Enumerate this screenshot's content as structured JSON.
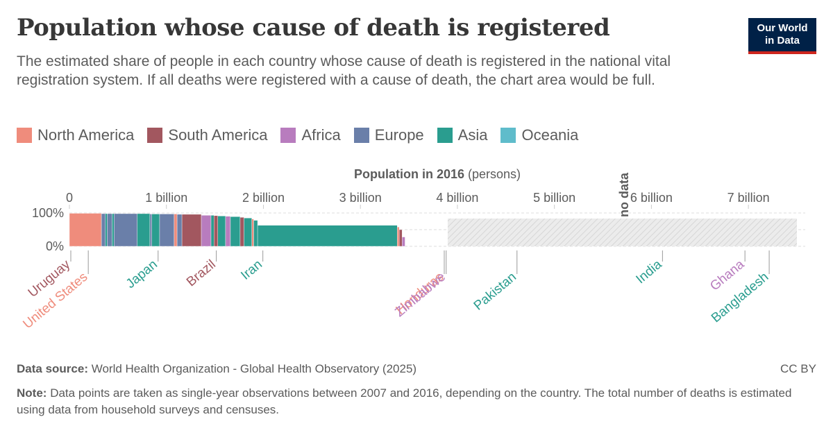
{
  "header": {
    "title": "Population whose cause of death is registered",
    "subtitle": "The estimated share of people in each country whose cause of death is registered in the national vital registration system. If all deaths were registered with a cause of death, the chart area would be full.",
    "logo_line1": "Our World",
    "logo_line2": "in Data"
  },
  "legend": [
    {
      "label": "North America",
      "color": "#ef8c7c"
    },
    {
      "label": "South America",
      "color": "#a2575f"
    },
    {
      "label": "Africa",
      "color": "#b87cbe"
    },
    {
      "label": "Europe",
      "color": "#6a7fa9"
    },
    {
      "label": "Asia",
      "color": "#2a9d8f"
    },
    {
      "label": "Oceania",
      "color": "#5fbccb"
    }
  ],
  "chart_data": {
    "type": "variable-width bar (marimekko)",
    "x_axis_title_bold": "Population in 2016",
    "x_axis_title_unit": "(persons)",
    "x_ticks": [
      {
        "value": 0,
        "label": "0"
      },
      {
        "value": 1,
        "label": "1 billion"
      },
      {
        "value": 2,
        "label": "2 billion"
      },
      {
        "value": 3,
        "label": "3 billion"
      },
      {
        "value": 4,
        "label": "4 billion"
      },
      {
        "value": 5,
        "label": "5 billion"
      },
      {
        "value": 6,
        "label": "6 billion"
      },
      {
        "value": 7,
        "label": "7 billion"
      }
    ],
    "y_ticks": [
      {
        "value": 100,
        "label": "100%"
      },
      {
        "value": 0,
        "label": "0%"
      }
    ],
    "x_unit": "billion persons",
    "xlim": [
      0,
      7.5
    ],
    "ylim": [
      0,
      100
    ],
    "no_data_label": "no data",
    "no_data_start": 3.9,
    "segments": [
      {
        "region": "North America",
        "width": 0.33,
        "value": 99
      },
      {
        "region": "Europe",
        "width": 0.04,
        "value": 98
      },
      {
        "region": "Asia",
        "width": 0.02,
        "value": 98
      },
      {
        "region": "Europe",
        "width": 0.05,
        "value": 98
      },
      {
        "region": "Asia",
        "width": 0.02,
        "value": 98
      },
      {
        "region": "Europe",
        "width": 0.24,
        "value": 98
      },
      {
        "region": "Asia",
        "width": 0.13,
        "value": 98
      },
      {
        "region": "Europe",
        "width": 0.02,
        "value": 97
      },
      {
        "region": "Asia",
        "width": 0.08,
        "value": 97
      },
      {
        "region": "Europe",
        "width": 0.15,
        "value": 97
      },
      {
        "region": "North America",
        "width": 0.03,
        "value": 97
      },
      {
        "region": "Europe",
        "width": 0.05,
        "value": 96
      },
      {
        "region": "South America",
        "width": 0.2,
        "value": 96
      },
      {
        "region": "Africa",
        "width": 0.1,
        "value": 93
      },
      {
        "region": "Asia",
        "width": 0.03,
        "value": 93
      },
      {
        "region": "South America",
        "width": 0.04,
        "value": 92
      },
      {
        "region": "Asia",
        "width": 0.08,
        "value": 91
      },
      {
        "region": "Africa",
        "width": 0.05,
        "value": 90
      },
      {
        "region": "Asia",
        "width": 0.1,
        "value": 89
      },
      {
        "region": "South America",
        "width": 0.04,
        "value": 87
      },
      {
        "region": "Asia",
        "width": 0.08,
        "value": 85
      },
      {
        "region": "North America",
        "width": 0.02,
        "value": 82
      },
      {
        "region": "Asia",
        "width": 0.04,
        "value": 78
      },
      {
        "region": "Asia",
        "width": 1.44,
        "value": 63
      },
      {
        "region": "North America",
        "width": 0.02,
        "value": 58
      },
      {
        "region": "South America",
        "width": 0.03,
        "value": 50
      },
      {
        "region": "Africa",
        "width": 0.03,
        "value": 28
      }
    ],
    "labels": [
      {
        "name": "Uruguay",
        "region": "South America",
        "x": 0.0,
        "row": 1
      },
      {
        "name": "United States",
        "region": "North America",
        "x": 0.18,
        "row": 2
      },
      {
        "name": "Japan",
        "region": "Asia",
        "x": 0.9,
        "row": 1
      },
      {
        "name": "Brazil",
        "region": "South America",
        "x": 1.5,
        "row": 1
      },
      {
        "name": "Iran",
        "region": "Asia",
        "x": 1.98,
        "row": 1
      },
      {
        "name": "Honduras",
        "region": "North America",
        "x": 3.85,
        "row": 2
      },
      {
        "name": "Zimbabwe",
        "region": "Africa",
        "x": 3.87,
        "row": 2
      },
      {
        "name": "Pakistan",
        "region": "Asia",
        "x": 4.6,
        "row": 2
      },
      {
        "name": "India",
        "region": "Asia",
        "x": 6.1,
        "row": 1
      },
      {
        "name": "Ghana",
        "region": "Africa",
        "x": 6.95,
        "row": 1
      },
      {
        "name": "Bangladesh",
        "region": "Asia",
        "x": 7.2,
        "row": 2
      }
    ]
  },
  "footer": {
    "source_label": "Data source:",
    "source_text": "World Health Organization - Global Health Observatory (2025)",
    "note_label": "Note:",
    "note_text": "Data points are taken as single-year observations between 2007 and 2016, depending on the country. The total number of deaths is estimated using data from household surveys and censuses.",
    "license": "CC BY"
  }
}
